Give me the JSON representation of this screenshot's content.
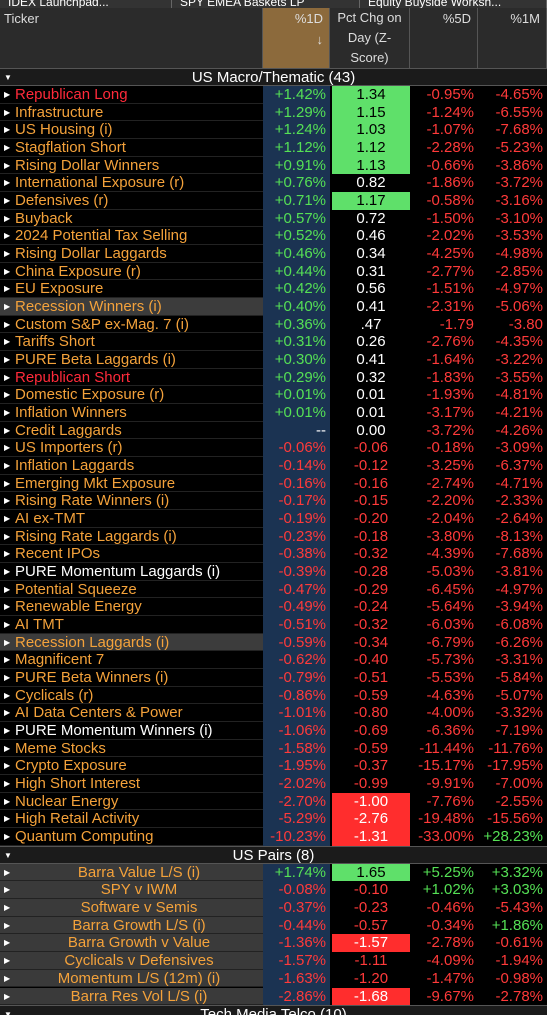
{
  "tabs": [
    "IDEX Launchpad...",
    "SPY EMEA Baskets LP",
    "Equity Buyside Worksh..."
  ],
  "header": {
    "ticker": "Ticker",
    "d1": "%1D",
    "sort": "↓",
    "z": "Pct Chg on Day (Z-Score)",
    "d5": "%5D",
    "m1": "%1M"
  },
  "sections": [
    {
      "title": "US Macro/Thematic (43)",
      "rows": [
        {
          "name": "Republican Long",
          "d1": "+1.42%",
          "z": "1.34",
          "d5": "-0.95%",
          "m1": "-4.65%"
        },
        {
          "name": "Infrastructure",
          "d1": "+1.29%",
          "z": "1.15",
          "d5": "-1.24%",
          "m1": "-6.55%"
        },
        {
          "name": "US Housing (i)",
          "d1": "+1.24%",
          "z": "1.03",
          "d5": "-1.07%",
          "m1": "-7.68%"
        },
        {
          "name": "Stagflation Short",
          "d1": "+1.12%",
          "z": "1.12",
          "d5": "-2.28%",
          "m1": "-5.23%"
        },
        {
          "name": "Rising Dollar Winners",
          "d1": "+0.91%",
          "z": "1.13",
          "d5": "-0.66%",
          "m1": "-3.86%"
        },
        {
          "name": "International Exposure (r)",
          "d1": "+0.76%",
          "z": "0.82",
          "d5": "-1.86%",
          "m1": "-3.72%"
        },
        {
          "name": "Defensives (r)",
          "d1": "+0.71%",
          "z": "1.17",
          "d5": "-0.58%",
          "m1": "-3.16%"
        },
        {
          "name": "Buyback",
          "d1": "+0.57%",
          "z": "0.72",
          "d5": "-1.50%",
          "m1": "-3.10%"
        },
        {
          "name": "2024 Potential Tax Selling",
          "d1": "+0.52%",
          "z": "0.46",
          "d5": "-2.02%",
          "m1": "-3.53%"
        },
        {
          "name": "Rising Dollar Laggards",
          "d1": "+0.46%",
          "z": "0.34",
          "d5": "-4.25%",
          "m1": "-4.98%"
        },
        {
          "name": "China Exposure (r)",
          "d1": "+0.44%",
          "z": "0.31",
          "d5": "-2.77%",
          "m1": "-2.85%"
        },
        {
          "name": "EU Exposure",
          "d1": "+0.42%",
          "z": "0.56",
          "d5": "-1.51%",
          "m1": "-4.97%"
        },
        {
          "name": "Recession Winners (i)",
          "d1": "+0.40%",
          "z": "0.41",
          "d5": "-2.31%",
          "m1": "-5.06%"
        },
        {
          "name": "Custom S&P ex-Mag. 7 (i)",
          "d1": "+0.36%",
          "z": ".47",
          "d5": "-1.79",
          "m1": "-3.80"
        },
        {
          "name": "Tariffs Short",
          "d1": "+0.31%",
          "z": "0.26",
          "d5": "-2.76%",
          "m1": "-4.35%"
        },
        {
          "name": "PURE Beta Laggards (i)",
          "d1": "+0.30%",
          "z": "0.41",
          "d5": "-1.64%",
          "m1": "-3.22%"
        },
        {
          "name": "Republican Short",
          "d1": "+0.29%",
          "z": "0.32",
          "d5": "-1.83%",
          "m1": "-3.55%"
        },
        {
          "name": "Domestic Exposure (r)",
          "d1": "+0.01%",
          "z": "0.01",
          "d5": "-1.93%",
          "m1": "-4.81%"
        },
        {
          "name": "Inflation Winners",
          "d1": "+0.01%",
          "z": "0.01",
          "d5": "-3.17%",
          "m1": "-4.21%"
        },
        {
          "name": "Credit Laggards",
          "d1": "--",
          "z": "0.00",
          "d5": "-3.72%",
          "m1": "-4.26%"
        },
        {
          "name": "US Importers (r)",
          "d1": "-0.06%",
          "z": "-0.06",
          "d5": "-0.18%",
          "m1": "-3.09%"
        },
        {
          "name": "Inflation Laggards",
          "d1": "-0.14%",
          "z": "-0.12",
          "d5": "-3.25%",
          "m1": "-6.37%"
        },
        {
          "name": "Emerging Mkt Exposure",
          "d1": "-0.16%",
          "z": "-0.16",
          "d5": "-2.74%",
          "m1": "-4.71%"
        },
        {
          "name": "Rising Rate Winners (i)",
          "d1": "-0.17%",
          "z": "-0.15",
          "d5": "-2.20%",
          "m1": "-2.33%"
        },
        {
          "name": "AI ex-TMT",
          "d1": "-0.19%",
          "z": "-0.20",
          "d5": "-2.04%",
          "m1": "-2.64%"
        },
        {
          "name": "Rising Rate Laggards (i)",
          "d1": "-0.23%",
          "z": "-0.18",
          "d5": "-3.80%",
          "m1": "-8.13%"
        },
        {
          "name": "Recent IPOs",
          "d1": "-0.38%",
          "z": "-0.32",
          "d5": "-4.39%",
          "m1": "-7.68%"
        },
        {
          "name": "PURE Momentum Laggards (i)",
          "d1": "-0.39%",
          "z": "-0.28",
          "d5": "-5.03%",
          "m1": "-3.81%"
        },
        {
          "name": "Potential Squeeze",
          "d1": "-0.47%",
          "z": "-0.29",
          "d5": "-6.45%",
          "m1": "-4.97%"
        },
        {
          "name": "Renewable Energy",
          "d1": "-0.49%",
          "z": "-0.24",
          "d5": "-5.64%",
          "m1": "-3.94%"
        },
        {
          "name": "AI TMT",
          "d1": "-0.51%",
          "z": "-0.32",
          "d5": "-6.03%",
          "m1": "-6.08%"
        },
        {
          "name": "Recession Laggards (i)",
          "d1": "-0.59%",
          "z": "-0.34",
          "d5": "-6.79%",
          "m1": "-6.26%"
        },
        {
          "name": "Magnificent 7",
          "d1": "-0.62%",
          "z": "-0.40",
          "d5": "-5.73%",
          "m1": "-3.31%"
        },
        {
          "name": "PURE Beta Winners (i)",
          "d1": "-0.79%",
          "z": "-0.51",
          "d5": "-5.53%",
          "m1": "-5.84%"
        },
        {
          "name": "Cyclicals (r)",
          "d1": "-0.86%",
          "z": "-0.59",
          "d5": "-4.63%",
          "m1": "-5.07%"
        },
        {
          "name": "AI Data Centers & Power",
          "d1": "-1.01%",
          "z": "-0.80",
          "d5": "-4.00%",
          "m1": "-3.32%"
        },
        {
          "name": "PURE Momentum Winners (i)",
          "d1": "-1.06%",
          "z": "-0.69",
          "d5": "-6.36%",
          "m1": "-7.19%"
        },
        {
          "name": "Meme Stocks",
          "d1": "-1.58%",
          "z": "-0.59",
          "d5": "-11.44%",
          "m1": "-11.76%"
        },
        {
          "name": "Crypto Exposure",
          "d1": "-1.95%",
          "z": "-0.37",
          "d5": "-15.17%",
          "m1": "-17.95%"
        },
        {
          "name": "High Short Interest",
          "d1": "-2.02%",
          "z": "-0.99",
          "d5": "-9.91%",
          "m1": "-7.00%"
        },
        {
          "name": "Nuclear Energy",
          "d1": "-2.70%",
          "z": "-1.00",
          "d5": "-7.76%",
          "m1": "-2.55%"
        },
        {
          "name": "High Retail Activity",
          "d1": "-5.29%",
          "z": "-2.76",
          "d5": "-19.48%",
          "m1": "-15.56%"
        },
        {
          "name": "Quantum Computing",
          "d1": "-10.23%",
          "z": "-1.31",
          "d5": "-33.00%",
          "m1": "+28.23%"
        }
      ]
    },
    {
      "title": "US Pairs (8)",
      "rows": [
        {
          "name": "Barra Value L/S (i)",
          "d1": "+1.74%",
          "z": "1.65",
          "d5": "+5.25%",
          "m1": "+3.32%"
        },
        {
          "name": "SPY v IWM",
          "d1": "-0.08%",
          "z": "-0.10",
          "d5": "+1.02%",
          "m1": "+3.03%"
        },
        {
          "name": "Software v Semis",
          "d1": "-0.37%",
          "z": "-0.23",
          "d5": "-0.46%",
          "m1": "-5.43%"
        },
        {
          "name": "Barra Growth L/S (i)",
          "d1": "-0.44%",
          "z": "-0.57",
          "d5": "-0.34%",
          "m1": "+1.86%"
        },
        {
          "name": "Barra Growth v Value",
          "d1": "-1.36%",
          "z": "-1.57",
          "d5": "-2.78%",
          "m1": "-0.61%"
        },
        {
          "name": "Cyclicals v Defensives",
          "d1": "-1.57%",
          "z": "-1.11",
          "d5": "-4.09%",
          "m1": "-1.94%"
        },
        {
          "name": "Momentum L/S (12m) (i)",
          "d1": "-1.63%",
          "z": "-1.20",
          "d5": "-1.47%",
          "m1": "-0.98%"
        },
        {
          "name": "Barra Res Vol L/S (i)",
          "d1": "-2.86%",
          "z": "-1.68",
          "d5": "-9.67%",
          "m1": "-2.78%"
        }
      ]
    },
    {
      "title": "Tech Media Telco (10)",
      "rows": []
    }
  ]
}
